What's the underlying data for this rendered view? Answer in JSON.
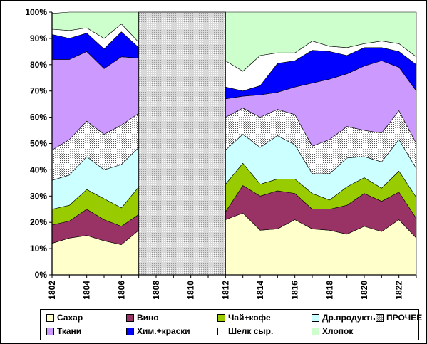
{
  "chart_data": {
    "type": "area",
    "stacked": true,
    "normalized": true,
    "x": [
      1802,
      1803,
      1804,
      1805,
      1806,
      1807,
      1812,
      1813,
      1814,
      1815,
      1816,
      1817,
      1818,
      1819,
      1820,
      1821,
      1822,
      1823
    ],
    "x_segments": [
      [
        1802,
        1807
      ],
      [
        1812,
        1823
      ]
    ],
    "gap": {
      "from": 1807,
      "to": 1812,
      "fill": "hatched-gray"
    },
    "xticks": [
      "1802",
      "1804",
      "1806",
      "1808",
      "1810",
      "1812",
      "1814",
      "1816",
      "1818",
      "1820",
      "1822"
    ],
    "yticks": [
      "0%",
      "10%",
      "20%",
      "30%",
      "40%",
      "50%",
      "60%",
      "70%",
      "80%",
      "90%",
      "100%"
    ],
    "ylim": [
      0,
      100
    ],
    "grid": false,
    "legend_position": "bottom",
    "title": "",
    "xlabel": "",
    "ylabel": "",
    "series": [
      {
        "name": "Сахар",
        "color": "#ffffcc",
        "values": [
          12,
          14,
          15,
          13,
          11.5,
          17,
          21,
          23.5,
          17,
          17.5,
          21,
          17.5,
          17,
          15.5,
          18.5,
          16.5,
          21,
          14
        ]
      },
      {
        "name": "Вино",
        "color": "#993366",
        "values": [
          7,
          6.5,
          10,
          8,
          7,
          6,
          3,
          10.5,
          13,
          14.5,
          10,
          7.5,
          8,
          11,
          12.5,
          11.5,
          10.5,
          7.5
        ]
      },
      {
        "name": "Чай+кофе",
        "color": "#99cc00",
        "values": [
          6,
          6,
          7.5,
          8,
          7,
          10.5,
          10.5,
          8.5,
          4.5,
          4.5,
          5.5,
          6,
          3.5,
          7,
          6,
          5,
          8,
          8
        ]
      },
      {
        "name": "Др.продукты",
        "color": "#ccffff",
        "values": [
          11,
          11.5,
          12.5,
          11,
          16.5,
          15,
          13,
          11,
          14,
          16.5,
          13,
          7.5,
          10,
          11,
          8,
          10,
          12,
          11
        ]
      },
      {
        "name": "ПРОЧЕЕ",
        "color": "#dddddd",
        "values": [
          11.5,
          13.5,
          13.5,
          13.5,
          15,
          13,
          12.5,
          10,
          11.5,
          10,
          11.5,
          10.5,
          13,
          12,
          10,
          11,
          11,
          9.5
        ]
      },
      {
        "name": "Ткани",
        "color": "#cc99ff",
        "values": [
          34.5,
          30.5,
          26.5,
          25,
          26,
          21,
          7,
          4.5,
          8.5,
          6.5,
          10.5,
          24,
          23,
          20,
          24.5,
          27.5,
          16.5,
          20
        ]
      },
      {
        "name": "Хим.+краски",
        "color": "#0000ff",
        "values": [
          9.5,
          8,
          7,
          7.5,
          9.5,
          4,
          4.5,
          2,
          3.5,
          11,
          10,
          12.5,
          10.5,
          7,
          7,
          5,
          6,
          10
        ]
      },
      {
        "name": "Шелк сыр.",
        "color": "#ffffff",
        "values": [
          2,
          3,
          2,
          4,
          3,
          2,
          10,
          7.5,
          11.5,
          4,
          3,
          3.5,
          2,
          3,
          1.5,
          2.5,
          3,
          3
        ]
      },
      {
        "name": "Хлопок",
        "color": "#ccffcc",
        "values": [
          6,
          7,
          6,
          10,
          4.5,
          11.5,
          18.5,
          22.5,
          16.5,
          15.5,
          15.5,
          11,
          13,
          13.5,
          12,
          11,
          12,
          17
        ]
      }
    ]
  }
}
